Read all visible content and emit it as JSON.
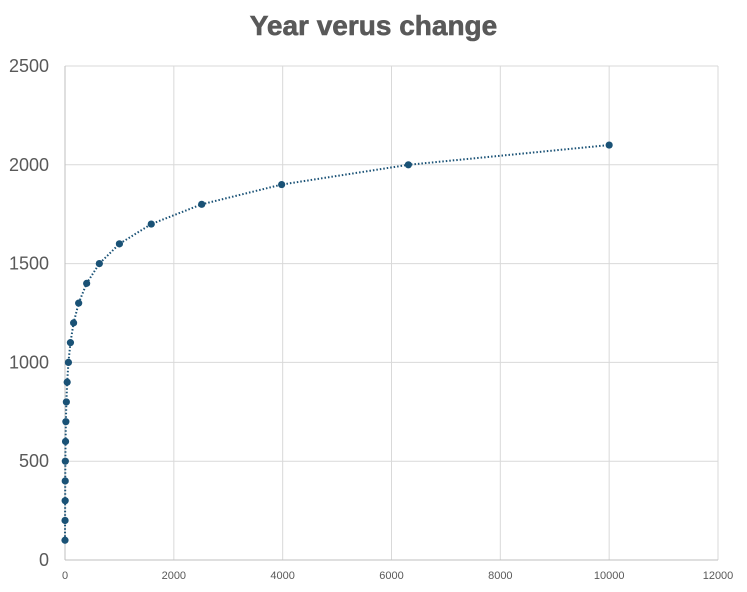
{
  "chart_data": {
    "type": "scatter",
    "title": "Year verus change",
    "xlabel": "",
    "ylabel": "",
    "xlim": [
      0,
      12000
    ],
    "ylim": [
      0,
      2500
    ],
    "xticks": [
      0,
      2000,
      4000,
      6000,
      8000,
      10000,
      12000
    ],
    "yticks": [
      0,
      500,
      1000,
      1500,
      2000,
      2500
    ],
    "grid": true,
    "legend": "none",
    "colors": {
      "marker": "#1a5276",
      "line": "#1a5276",
      "grid": "#d9d9d9",
      "axis": "#bfbfbf",
      "text": "#595959"
    },
    "line_style": "dotted",
    "series": [
      {
        "points": [
          {
            "x": 0,
            "y": 100
          },
          {
            "x": 1,
            "y": 200
          },
          {
            "x": 3,
            "y": 300
          },
          {
            "x": 4,
            "y": 400
          },
          {
            "x": 6,
            "y": 500
          },
          {
            "x": 10,
            "y": 600
          },
          {
            "x": 16,
            "y": 700
          },
          {
            "x": 25,
            "y": 800
          },
          {
            "x": 40,
            "y": 900
          },
          {
            "x": 63,
            "y": 1000
          },
          {
            "x": 100,
            "y": 1100
          },
          {
            "x": 158,
            "y": 1200
          },
          {
            "x": 251,
            "y": 1300
          },
          {
            "x": 398,
            "y": 1400
          },
          {
            "x": 631,
            "y": 1500
          },
          {
            "x": 1000,
            "y": 1600
          },
          {
            "x": 1585,
            "y": 1700
          },
          {
            "x": 2512,
            "y": 1800
          },
          {
            "x": 3981,
            "y": 1900
          },
          {
            "x": 6310,
            "y": 2000
          },
          {
            "x": 10000,
            "y": 2100
          }
        ]
      }
    ]
  }
}
